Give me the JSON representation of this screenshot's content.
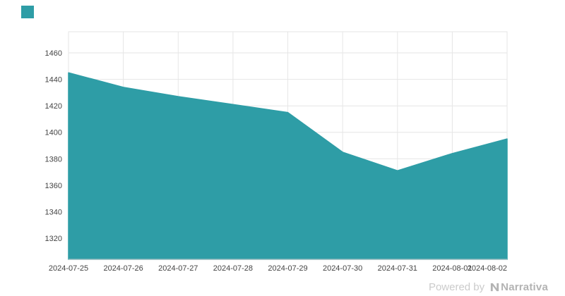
{
  "branding": {
    "logo_square": "teal-square"
  },
  "footer": {
    "powered_by": "Powered by",
    "brand": "Narrativa"
  },
  "colors": {
    "accent": "#2E9DA6",
    "gridline": "#E6E6E6",
    "axis": "#C9C9C9",
    "label": "#444444",
    "powered": "#CBCBCB",
    "brand": "#B3B3B3"
  },
  "chart_data": {
    "type": "area",
    "title": "",
    "xlabel": "",
    "ylabel": "",
    "x": [
      "2024-07-25",
      "2024-07-26",
      "2024-07-27",
      "2024-07-28",
      "2024-07-29",
      "2024-07-30",
      "2024-07-31",
      "2024-08-01",
      "2024-08-02"
    ],
    "values": [
      1445,
      1434,
      1427,
      1421,
      1415,
      1385,
      1371,
      1384,
      1395
    ],
    "ylim": [
      1304,
      1476
    ],
    "yticks": [
      1320,
      1340,
      1360,
      1380,
      1400,
      1420,
      1440,
      1460
    ],
    "grid": true,
    "legend": "none",
    "area_color": "#2E9DA6",
    "line_color": "#2E9DA6"
  }
}
